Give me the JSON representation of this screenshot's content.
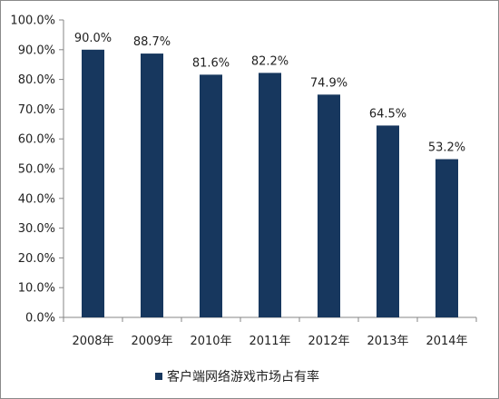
{
  "chart_data": {
    "type": "bar",
    "categories": [
      "2008年",
      "2009年",
      "2010年",
      "2011年",
      "2012年",
      "2013年",
      "2014年"
    ],
    "series": [
      {
        "name": "客户端网络游戏市场占有率",
        "values": [
          90.0,
          88.7,
          81.6,
          82.2,
          74.9,
          64.5,
          53.2
        ],
        "labels": [
          "90.0%",
          "88.7%",
          "81.6%",
          "82.2%",
          "74.9%",
          "64.5%",
          "53.2%"
        ]
      }
    ],
    "yticks": [
      "0.0%",
      "10.0%",
      "20.0%",
      "30.0%",
      "40.0%",
      "50.0%",
      "60.0%",
      "70.0%",
      "80.0%",
      "90.0%",
      "100.0%"
    ],
    "ylim": [
      0,
      100
    ],
    "grid": false,
    "legend_position": "bottom",
    "bar_color": "#17375e"
  }
}
